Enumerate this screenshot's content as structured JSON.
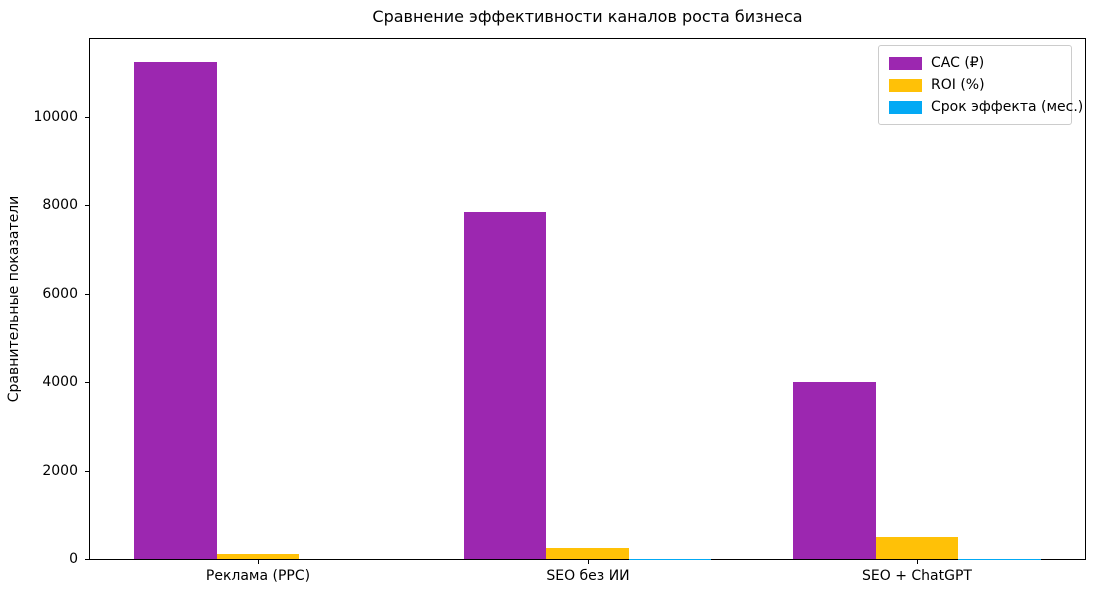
{
  "chart_data": {
    "type": "bar",
    "title": "Сравнение эффективности каналов роста бизнеса",
    "xlabel": "",
    "ylabel": "Сравнительные показатели",
    "categories": [
      "Реклама (PPC)",
      "SEO без ИИ",
      "SEO + ChatGPT"
    ],
    "series": [
      {
        "name": "CAC (₽)",
        "color": "#9c27b0",
        "values": [
          11250,
          7850,
          4000
        ]
      },
      {
        "name": "ROI (%)",
        "color": "#ffc107",
        "values": [
          120,
          250,
          500
        ]
      },
      {
        "name": "Срок эффекта (мес.)",
        "color": "#03a9f4",
        "values": [
          1,
          6,
          3
        ]
      }
    ],
    "yticks": [
      0,
      2000,
      4000,
      6000,
      8000,
      10000
    ],
    "ylim": [
      0,
      11812
    ],
    "grid": false,
    "legend_position": "upper right",
    "bar_width_fraction": 0.25,
    "background_color": "#ffffff",
    "axis_color": "#000000"
  }
}
